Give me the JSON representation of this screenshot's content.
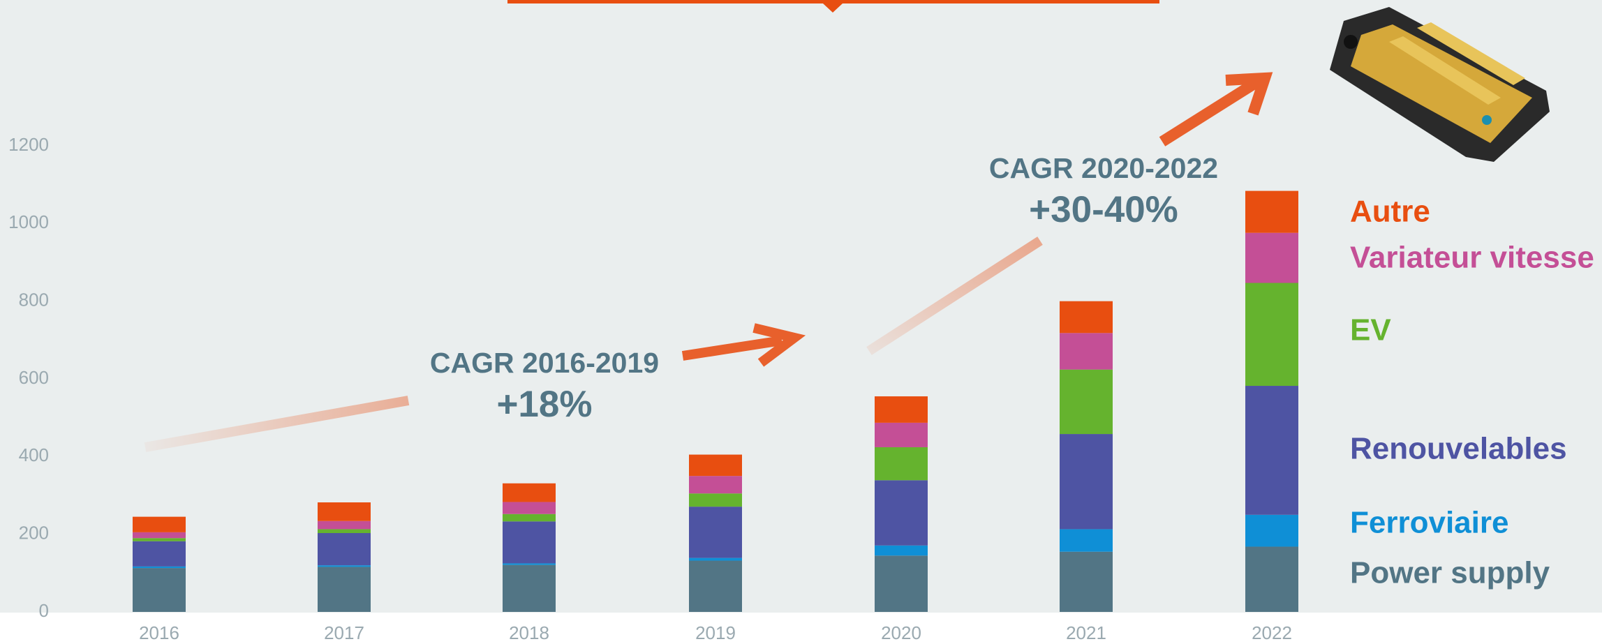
{
  "chart_data": {
    "type": "bar",
    "stacked": true,
    "categories": [
      "2016",
      "2017",
      "2018",
      "2019",
      "2020",
      "2021",
      "2022"
    ],
    "series": [
      {
        "name": "Power supply",
        "color": "#527585",
        "values": [
          113,
          116,
          121,
          132,
          145,
          155,
          168
        ]
      },
      {
        "name": "Ferroviaire",
        "color": "#0f8fd6",
        "values": [
          4,
          4,
          4,
          7,
          26,
          58,
          82
        ]
      },
      {
        "name": "Renouvelables",
        "color": "#4e54a3",
        "values": [
          65,
          83,
          108,
          132,
          168,
          245,
          332
        ]
      },
      {
        "name": "EV",
        "color": "#65b32e",
        "values": [
          8,
          10,
          19,
          34,
          85,
          166,
          265
        ]
      },
      {
        "name": "Variateur vitesse",
        "color": "#c44f96",
        "values": [
          15,
          21,
          31,
          45,
          63,
          94,
          129
        ]
      },
      {
        "name": "Autre",
        "color": "#e84e10",
        "values": [
          40,
          48,
          48,
          55,
          68,
          82,
          108
        ]
      }
    ],
    "ylim": [
      0,
      1200
    ],
    "yticks": [
      0,
      200,
      400,
      600,
      800,
      1000,
      1200
    ],
    "annotations": [
      "CAGR 2016-2019",
      "+18%",
      "CAGR 2020-2022",
      "+30-40%"
    ]
  }
}
